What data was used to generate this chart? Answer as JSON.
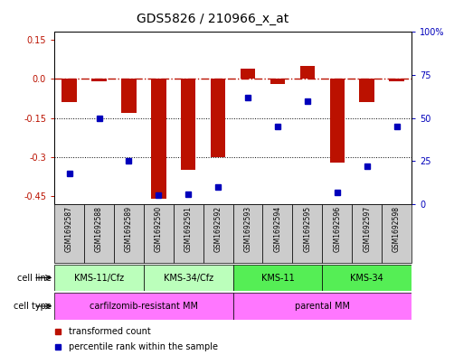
{
  "title": "GDS5826 / 210966_x_at",
  "samples": [
    "GSM1692587",
    "GSM1692588",
    "GSM1692589",
    "GSM1692590",
    "GSM1692591",
    "GSM1692592",
    "GSM1692593",
    "GSM1692594",
    "GSM1692595",
    "GSM1692596",
    "GSM1692597",
    "GSM1692598"
  ],
  "transformed_count": [
    -0.09,
    -0.01,
    -0.13,
    -0.46,
    -0.35,
    -0.3,
    0.04,
    -0.02,
    0.05,
    -0.32,
    -0.09,
    -0.01
  ],
  "percentile_rank": [
    18,
    50,
    25,
    5,
    6,
    10,
    62,
    45,
    60,
    7,
    22,
    45
  ],
  "cell_line_groups": [
    {
      "label": "KMS-11/Cfz",
      "start": 0,
      "end": 3
    },
    {
      "label": "KMS-34/Cfz",
      "start": 3,
      "end": 6
    },
    {
      "label": "KMS-11",
      "start": 6,
      "end": 9
    },
    {
      "label": "KMS-34",
      "start": 9,
      "end": 12
    }
  ],
  "cell_line_colors": [
    "#bbffbb",
    "#bbffbb",
    "#55ee55",
    "#55ee55"
  ],
  "cell_type_groups": [
    {
      "label": "carfilzomib-resistant MM",
      "start": 0,
      "end": 6
    },
    {
      "label": "parental MM",
      "start": 6,
      "end": 12
    }
  ],
  "cell_type_color": "#ff77ff",
  "bar_color": "#bb1100",
  "dot_color": "#0000bb",
  "ylim_left": [
    -0.48,
    0.18
  ],
  "ylim_right": [
    0,
    100
  ],
  "yticks_left": [
    0.15,
    0.0,
    -0.15,
    -0.3,
    -0.45
  ],
  "yticks_right": [
    100,
    75,
    50,
    25,
    0
  ],
  "dotted_hlines": [
    -0.15,
    -0.3
  ],
  "title_fontsize": 10,
  "tick_fontsize": 7,
  "sample_fontsize": 5.5,
  "panel_fontsize": 7,
  "legend_fontsize": 7,
  "bar_width": 0.5
}
